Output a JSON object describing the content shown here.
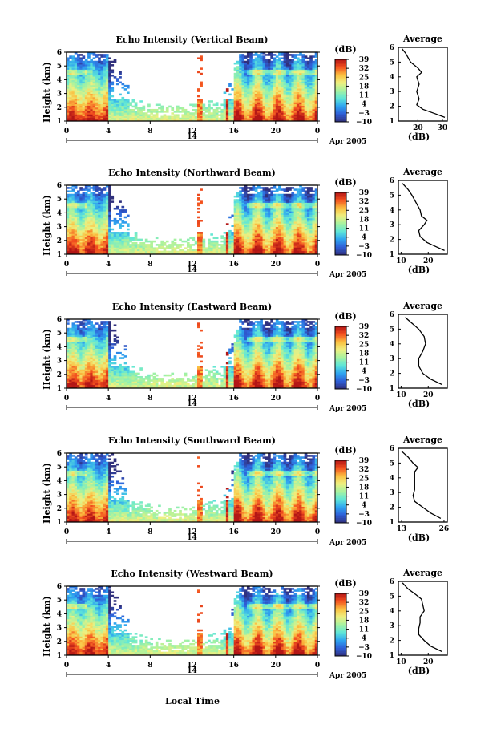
{
  "figure": {
    "bottom_xlabel": "Local Time",
    "date_label": "Apr 2005",
    "day_label": "14",
    "avg_title": "Average",
    "avg_xlabel": "(dB)",
    "colorbar_unit": "(dB)",
    "colorbar_ticks": [
      "39",
      "32",
      "25",
      "18",
      "11",
      "4",
      "−3",
      "−10"
    ],
    "colormap": [
      "#30307c",
      "#2f5fd8",
      "#2ea5f0",
      "#5fe6d8",
      "#a6f2a0",
      "#eef080",
      "#fbbf40",
      "#f3501f",
      "#b31616"
    ]
  },
  "chart_data": [
    {
      "type": "heatmap",
      "title": "Echo Intensity (Vertical Beam)",
      "ylabel": "Height (km)",
      "xlabel": "Local Time",
      "x_ticks": [
        "0",
        "4",
        "8",
        "12",
        "16",
        "20",
        "0"
      ],
      "y_ticks": [
        "1",
        "2",
        "3",
        "4",
        "5",
        "6"
      ],
      "xlim": [
        0,
        24
      ],
      "ylim": [
        1,
        6
      ],
      "zlim": [
        -10,
        39
      ],
      "average_profile": {
        "title": "Average",
        "xlabel": "(dB)",
        "x_ticks": [
          "20",
          "30"
        ],
        "xlim": [
          12,
          32
        ],
        "height_km": [
          1.25,
          1.5,
          1.8,
          2.1,
          2.5,
          3.0,
          3.5,
          4.0,
          4.3,
          4.6,
          5.0,
          5.3,
          5.6,
          5.9
        ],
        "value_db": [
          31,
          27,
          22,
          19.5,
          20.5,
          19.5,
          20.5,
          19.5,
          21.5,
          20,
          17,
          16,
          15,
          13.5
        ]
      }
    },
    {
      "type": "heatmap",
      "title": "Echo Intensity (Northward Beam)",
      "ylabel": "Height (km)",
      "xlabel": "Local Time",
      "x_ticks": [
        "0",
        "4",
        "8",
        "12",
        "16",
        "20",
        "0"
      ],
      "y_ticks": [
        "1",
        "2",
        "3",
        "4",
        "5",
        "6"
      ],
      "xlim": [
        0,
        24
      ],
      "ylim": [
        1,
        6
      ],
      "zlim": [
        -10,
        39
      ],
      "average_profile": {
        "title": "Average",
        "xlabel": "(dB)",
        "x_ticks": [
          "10",
          "20"
        ],
        "xlim": [
          9,
          27
        ],
        "height_km": [
          1.25,
          1.5,
          1.8,
          2.2,
          2.6,
          3.0,
          3.3,
          3.6,
          4.0,
          4.5,
          5.0,
          5.4,
          5.8
        ],
        "value_db": [
          26,
          23,
          19.5,
          17,
          16.5,
          18.5,
          19.5,
          17.5,
          17,
          15.5,
          14,
          12.5,
          10.5
        ]
      }
    },
    {
      "type": "heatmap",
      "title": "Echo Intensity (Eastward Beam)",
      "ylabel": "Height (km)",
      "xlabel": "Local Time",
      "x_ticks": [
        "0",
        "4",
        "8",
        "12",
        "16",
        "20",
        "0"
      ],
      "y_ticks": [
        "1",
        "2",
        "3",
        "4",
        "5",
        "6"
      ],
      "xlim": [
        0,
        24
      ],
      "ylim": [
        1,
        6
      ],
      "zlim": [
        -10,
        39
      ],
      "average_profile": {
        "title": "Average",
        "xlabel": "(dB)",
        "x_ticks": [
          "10",
          "20"
        ],
        "xlim": [
          9,
          27
        ],
        "height_km": [
          1.25,
          1.6,
          2.0,
          2.5,
          3.0,
          3.5,
          4.0,
          4.5,
          5.0,
          5.4,
          5.8
        ],
        "value_db": [
          25,
          21,
          18,
          16.5,
          16.5,
          18,
          19,
          18.5,
          16.5,
          14,
          11.5
        ]
      }
    },
    {
      "type": "heatmap",
      "title": "Echo Intensity (Southward Beam)",
      "ylabel": "Height (km)",
      "xlabel": "Local Time",
      "x_ticks": [
        "0",
        "4",
        "8",
        "12",
        "16",
        "20",
        "0"
      ],
      "y_ticks": [
        "1",
        "2",
        "3",
        "4",
        "5",
        "6"
      ],
      "xlim": [
        0,
        24
      ],
      "ylim": [
        1,
        6
      ],
      "zlim": [
        -10,
        39
      ],
      "average_profile": {
        "title": "Average",
        "xlabel": "(dB)",
        "x_ticks": [
          "13",
          "26"
        ],
        "xlim": [
          12,
          27
        ],
        "height_km": [
          1.25,
          1.6,
          2.0,
          2.4,
          2.8,
          3.2,
          3.6,
          4.0,
          4.4,
          4.7,
          5.0,
          5.4,
          5.8
        ],
        "value_db": [
          25,
          22,
          19.5,
          17,
          16.5,
          17,
          17,
          17,
          17,
          18,
          16.5,
          15,
          13
        ]
      }
    },
    {
      "type": "heatmap",
      "title": "Echo Intensity (Westward Beam)",
      "ylabel": "Height (km)",
      "xlabel": "Local Time",
      "x_ticks": [
        "0",
        "4",
        "8",
        "12",
        "16",
        "20",
        "0"
      ],
      "y_ticks": [
        "1",
        "2",
        "3",
        "4",
        "5",
        "6"
      ],
      "xlim": [
        0,
        24
      ],
      "ylim": [
        1,
        6
      ],
      "zlim": [
        -10,
        39
      ],
      "average_profile": {
        "title": "Average",
        "xlabel": "(dB)",
        "x_ticks": [
          "10",
          "20"
        ],
        "xlim": [
          9,
          27
        ],
        "height_km": [
          1.25,
          1.6,
          2.0,
          2.4,
          2.8,
          3.2,
          3.6,
          4.0,
          4.4,
          4.8,
          5.1,
          5.5,
          5.9
        ],
        "value_db": [
          25,
          21,
          18.5,
          16.5,
          16.5,
          17,
          17,
          18.5,
          18,
          17.5,
          15.5,
          12.5,
          10.5
        ]
      }
    }
  ]
}
